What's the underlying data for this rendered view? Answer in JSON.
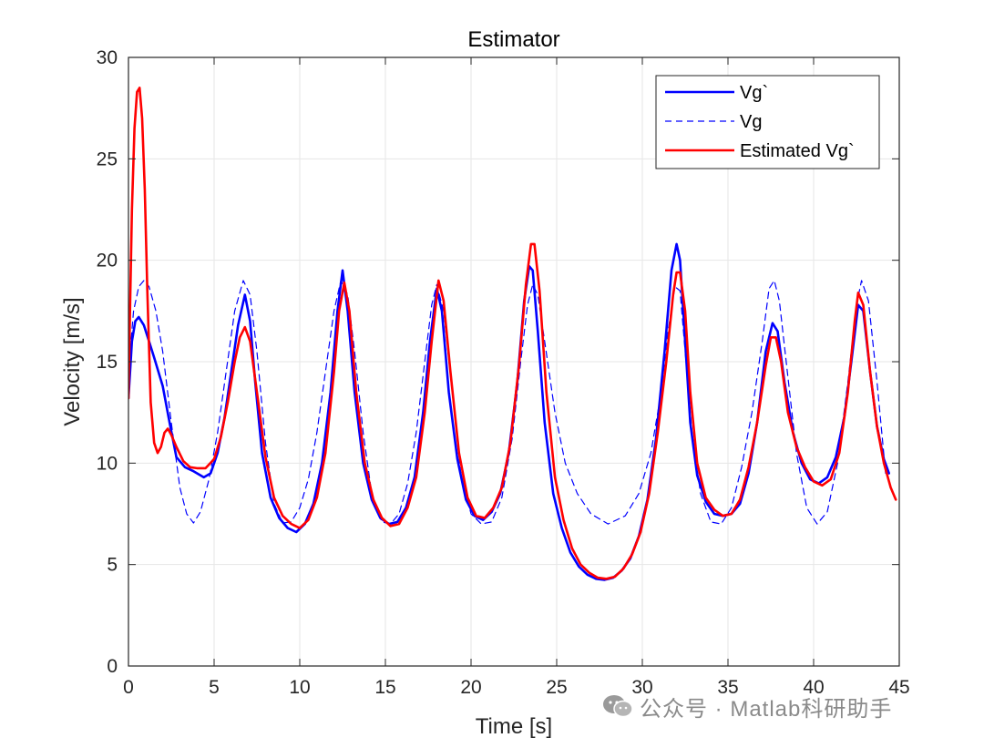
{
  "chart_data": {
    "type": "line",
    "title": "Estimator",
    "xlabel": "Time [s]",
    "ylabel": "Velocity [m/s]",
    "xlim": [
      0,
      45
    ],
    "ylim": [
      0,
      30
    ],
    "xticks": [
      0,
      5,
      10,
      15,
      20,
      25,
      30,
      35,
      40,
      45
    ],
    "yticks": [
      0,
      5,
      10,
      15,
      20,
      25,
      30
    ],
    "grid": true,
    "legend_position": "top-right",
    "series": [
      {
        "name": "Vg`",
        "color": "#0000ff",
        "style": "solid",
        "x": [
          0,
          0.2,
          0.4,
          0.6,
          0.9,
          1.2,
          1.5,
          2.0,
          2.4,
          2.8,
          3.3,
          3.8,
          4.4,
          4.8,
          5.2,
          5.6,
          6.0,
          6.4,
          6.8,
          7.1,
          7.4,
          7.8,
          8.3,
          8.8,
          9.3,
          9.8,
          10.3,
          10.8,
          11.3,
          11.8,
          12.2,
          12.5,
          12.8,
          13.2,
          13.7,
          14.2,
          14.7,
          15.2,
          15.7,
          16.2,
          16.7,
          17.2,
          17.6,
          18.0,
          18.3,
          18.7,
          19.2,
          19.7,
          20.2,
          20.7,
          21.2,
          21.7,
          22.2,
          22.7,
          23.1,
          23.4,
          23.6,
          23.9,
          24.3,
          24.8,
          25.3,
          25.8,
          26.3,
          26.8,
          27.3,
          27.8,
          28.3,
          28.8,
          29.3,
          29.8,
          30.3,
          30.8,
          31.3,
          31.7,
          32.0,
          32.2,
          32.5,
          32.8,
          33.2,
          33.7,
          34.2,
          34.7,
          35.2,
          35.7,
          36.2,
          36.7,
          37.2,
          37.6,
          37.9,
          38.3,
          38.8,
          39.3,
          39.8,
          40.3,
          40.8,
          41.3,
          41.8,
          42.2,
          42.6,
          42.9,
          43.3,
          43.7,
          44.1,
          44.4
        ],
        "y": [
          13.2,
          16.0,
          17.0,
          17.2,
          16.8,
          16.0,
          15.2,
          13.8,
          12.0,
          10.3,
          9.8,
          9.6,
          9.3,
          9.5,
          10.5,
          12.2,
          14.5,
          16.8,
          18.3,
          17.0,
          14.0,
          10.5,
          8.3,
          7.3,
          6.8,
          6.6,
          7.0,
          8.0,
          10.0,
          13.5,
          17.5,
          19.5,
          17.5,
          13.5,
          10.0,
          8.2,
          7.3,
          7.0,
          7.1,
          7.8,
          9.3,
          12.5,
          16.0,
          18.6,
          17.5,
          13.5,
          10.2,
          8.2,
          7.4,
          7.2,
          7.6,
          8.5,
          10.5,
          14.0,
          18.0,
          19.7,
          19.5,
          16.5,
          12.0,
          8.5,
          6.8,
          5.6,
          4.9,
          4.5,
          4.3,
          4.25,
          4.35,
          4.7,
          5.3,
          6.4,
          8.2,
          11.2,
          15.5,
          19.5,
          20.8,
          20.0,
          16.0,
          12.0,
          9.4,
          8.1,
          7.5,
          7.4,
          7.5,
          8.0,
          9.5,
          12.0,
          15.5,
          16.9,
          16.5,
          14.0,
          11.5,
          10.0,
          9.2,
          9.0,
          9.3,
          10.3,
          12.3,
          15.0,
          17.8,
          17.5,
          14.5,
          11.8,
          10.2,
          9.5
        ]
      },
      {
        "name": "Vg",
        "color": "#0000ff",
        "style": "dashed",
        "x": [
          0,
          0.3,
          0.6,
          0.9,
          1.2,
          1.6,
          2.0,
          2.5,
          3.0,
          3.4,
          3.8,
          4.2,
          4.7,
          5.2,
          5.7,
          6.2,
          6.7,
          7.1,
          7.5,
          8.0,
          8.5,
          9.0,
          9.5,
          10.0,
          10.5,
          11.0,
          11.5,
          12.0,
          12.4,
          12.8,
          13.2,
          13.7,
          14.2,
          14.8,
          15.3,
          15.8,
          16.3,
          16.8,
          17.3,
          17.7,
          18.0,
          18.4,
          18.9,
          19.4,
          20.0,
          20.6,
          21.2,
          21.8,
          22.4,
          22.9,
          23.3,
          23.6,
          23.9,
          24.3,
          24.9,
          25.5,
          26.2,
          27.0,
          28.0,
          29.0,
          29.8,
          30.5,
          31.1,
          31.5,
          31.9,
          32.2,
          32.5,
          32.9,
          33.4,
          34.0,
          34.6,
          35.2,
          35.8,
          36.4,
          37.0,
          37.4,
          37.7,
          38.0,
          38.4,
          39.0,
          39.6,
          40.2,
          40.8,
          41.4,
          42.0,
          42.5,
          42.8,
          43.2,
          43.7,
          44.2
        ],
        "y": [
          14.5,
          17.5,
          18.7,
          19.0,
          18.7,
          17.5,
          15.5,
          12.0,
          8.8,
          7.5,
          7.05,
          7.6,
          9.2,
          11.5,
          14.5,
          17.5,
          19.0,
          18.3,
          15.5,
          11.0,
          8.0,
          7.05,
          7.1,
          7.8,
          9.2,
          11.5,
          14.5,
          17.5,
          19.0,
          18.3,
          15.5,
          11.5,
          8.5,
          7.1,
          7.0,
          7.5,
          9.0,
          11.5,
          15.0,
          17.8,
          18.8,
          17.5,
          13.5,
          9.5,
          7.5,
          7.0,
          7.1,
          8.3,
          11.2,
          15.0,
          17.8,
          18.8,
          18.3,
          16.0,
          12.5,
          10.0,
          8.5,
          7.5,
          7.0,
          7.4,
          8.5,
          10.5,
          13.5,
          16.5,
          18.7,
          18.5,
          15.5,
          11.5,
          8.5,
          7.1,
          7.0,
          7.8,
          9.8,
          12.5,
          16.0,
          18.6,
          19.0,
          18.0,
          15.0,
          10.5,
          7.8,
          7.0,
          7.6,
          10.0,
          14.0,
          17.8,
          19.0,
          18.0,
          14.0,
          9.5
        ]
      },
      {
        "name": "Estimated Vg`",
        "color": "#ff0000",
        "style": "solid",
        "x": [
          0,
          0.1,
          0.2,
          0.35,
          0.5,
          0.65,
          0.8,
          0.95,
          1.1,
          1.3,
          1.5,
          1.7,
          1.9,
          2.1,
          2.3,
          2.5,
          2.8,
          3.2,
          3.6,
          4.0,
          4.5,
          5.0,
          5.4,
          5.8,
          6.2,
          6.5,
          6.8,
          7.1,
          7.5,
          8.0,
          8.5,
          9.0,
          9.5,
          10.0,
          10.5,
          11.0,
          11.5,
          12.0,
          12.3,
          12.6,
          12.9,
          13.3,
          13.8,
          14.3,
          14.8,
          15.3,
          15.8,
          16.3,
          16.8,
          17.3,
          17.7,
          18.1,
          18.4,
          18.8,
          19.3,
          19.8,
          20.3,
          20.8,
          21.3,
          21.8,
          22.3,
          22.8,
          23.2,
          23.5,
          23.7,
          24.0,
          24.4,
          24.9,
          25.4,
          25.9,
          26.4,
          26.9,
          27.4,
          27.9,
          28.4,
          28.9,
          29.4,
          29.9,
          30.4,
          30.9,
          31.4,
          31.8,
          32.0,
          32.2,
          32.5,
          32.8,
          33.2,
          33.7,
          34.2,
          34.7,
          35.2,
          35.7,
          36.2,
          36.7,
          37.2,
          37.5,
          37.8,
          38.1,
          38.5,
          39.0,
          39.5,
          40.0,
          40.5,
          41.0,
          41.5,
          42.0,
          42.4,
          42.6,
          42.9,
          43.3,
          43.7,
          44.1,
          44.5,
          44.8
        ],
        "y": [
          13.2,
          18.0,
          22.5,
          26.5,
          28.3,
          28.5,
          27.0,
          23.5,
          18.5,
          13.0,
          11.0,
          10.5,
          10.8,
          11.5,
          11.7,
          11.4,
          10.8,
          10.1,
          9.8,
          9.75,
          9.75,
          10.2,
          11.3,
          13.0,
          15.0,
          16.2,
          16.7,
          16.0,
          13.5,
          10.3,
          8.3,
          7.4,
          7.0,
          6.8,
          7.2,
          8.3,
          10.5,
          14.5,
          17.5,
          18.9,
          17.5,
          13.5,
          10.0,
          8.2,
          7.3,
          6.9,
          7.0,
          7.8,
          9.3,
          12.5,
          16.0,
          19.0,
          18.0,
          14.5,
          10.5,
          8.3,
          7.4,
          7.3,
          7.8,
          8.8,
          11.0,
          14.8,
          18.8,
          20.8,
          20.8,
          18.5,
          13.5,
          9.3,
          7.2,
          5.8,
          5.0,
          4.6,
          4.35,
          4.3,
          4.4,
          4.8,
          5.5,
          6.6,
          8.5,
          11.5,
          15.0,
          18.3,
          19.4,
          19.4,
          17.5,
          13.5,
          10.0,
          8.3,
          7.7,
          7.4,
          7.5,
          8.2,
          9.8,
          12.0,
          14.8,
          16.2,
          16.2,
          15.0,
          12.5,
          10.8,
          9.8,
          9.1,
          8.9,
          9.2,
          10.5,
          13.5,
          17.0,
          18.4,
          17.8,
          14.5,
          11.8,
          10.0,
          8.8,
          8.2
        ]
      }
    ]
  },
  "watermark": {
    "text": "公众号 · Matlab科研助手",
    "icon": "wechat-icon"
  }
}
